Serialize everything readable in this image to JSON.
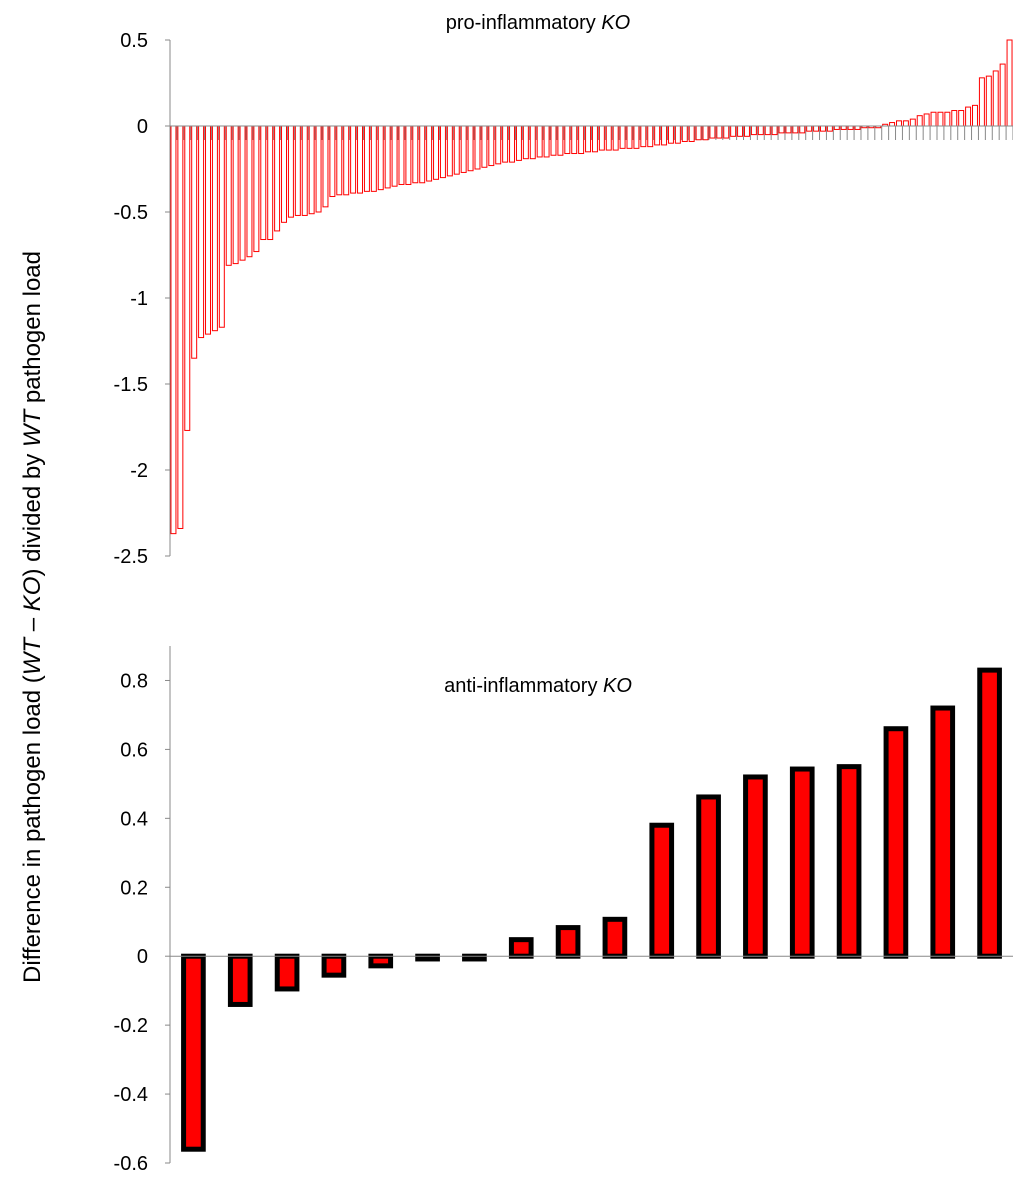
{
  "chart_data": [
    {
      "type": "bar",
      "title_parts": [
        "pro-inflammatory ",
        "KO"
      ],
      "ylim": [
        -2.5,
        0.5
      ],
      "yticks": [
        "0.5",
        "0",
        "-0.5",
        "-1",
        "-1.5",
        "-2",
        "-2.5"
      ],
      "ytick_values": [
        0.5,
        0,
        -0.5,
        -1,
        -1.5,
        -2,
        -2.5
      ],
      "grid": false,
      "bar_color": "#ff0000",
      "bar_fill": "#ffffff",
      "values": [
        -2.37,
        -2.34,
        -1.77,
        -1.35,
        -1.23,
        -1.21,
        -1.19,
        -1.17,
        -0.81,
        -0.8,
        -0.78,
        -0.76,
        -0.73,
        -0.66,
        -0.66,
        -0.61,
        -0.56,
        -0.53,
        -0.52,
        -0.52,
        -0.51,
        -0.5,
        -0.47,
        -0.41,
        -0.4,
        -0.4,
        -0.39,
        -0.39,
        -0.38,
        -0.38,
        -0.37,
        -0.36,
        -0.35,
        -0.34,
        -0.34,
        -0.33,
        -0.33,
        -0.32,
        -0.31,
        -0.3,
        -0.29,
        -0.28,
        -0.27,
        -0.26,
        -0.25,
        -0.24,
        -0.23,
        -0.22,
        -0.21,
        -0.21,
        -0.2,
        -0.19,
        -0.19,
        -0.18,
        -0.18,
        -0.17,
        -0.17,
        -0.16,
        -0.16,
        -0.16,
        -0.15,
        -0.15,
        -0.14,
        -0.14,
        -0.14,
        -0.13,
        -0.13,
        -0.13,
        -0.12,
        -0.12,
        -0.11,
        -0.11,
        -0.1,
        -0.1,
        -0.09,
        -0.09,
        -0.08,
        -0.08,
        -0.07,
        -0.07,
        -0.07,
        -0.06,
        -0.06,
        -0.06,
        -0.05,
        -0.05,
        -0.05,
        -0.05,
        -0.04,
        -0.04,
        -0.04,
        -0.04,
        -0.03,
        -0.03,
        -0.03,
        -0.03,
        -0.02,
        -0.02,
        -0.02,
        -0.02,
        -0.01,
        -0.01,
        -0.01,
        0.01,
        0.02,
        0.03,
        0.03,
        0.04,
        0.06,
        0.07,
        0.08,
        0.08,
        0.08,
        0.09,
        0.09,
        0.11,
        0.12,
        0.28,
        0.29,
        0.32,
        0.36,
        0.5
      ]
    },
    {
      "type": "bar",
      "title_parts": [
        "anti-inflammatory ",
        "KO"
      ],
      "ylim": [
        -0.6,
        0.9
      ],
      "yticks": [
        "0.8",
        "0.6",
        "0.4",
        "0.2",
        "0",
        "-0.2",
        "-0.4",
        "-0.6"
      ],
      "ytick_values": [
        0.8,
        0.6,
        0.4,
        0.2,
        0,
        -0.2,
        -0.4,
        -0.6
      ],
      "grid": false,
      "bar_color": "#ff0000",
      "bar_outline": "#000000",
      "values": [
        -0.56,
        -0.14,
        -0.095,
        -0.055,
        -0.028,
        -0.008,
        -0.008,
        0.048,
        0.083,
        0.107,
        0.38,
        0.462,
        0.52,
        0.543,
        0.55,
        0.66,
        0.72,
        0.83
      ]
    }
  ],
  "ylabel_parts": [
    "Difference in pathogen load (",
    "WT",
    " – ",
    "KO",
    ") divided by ",
    "WT",
    " pathogen load"
  ]
}
